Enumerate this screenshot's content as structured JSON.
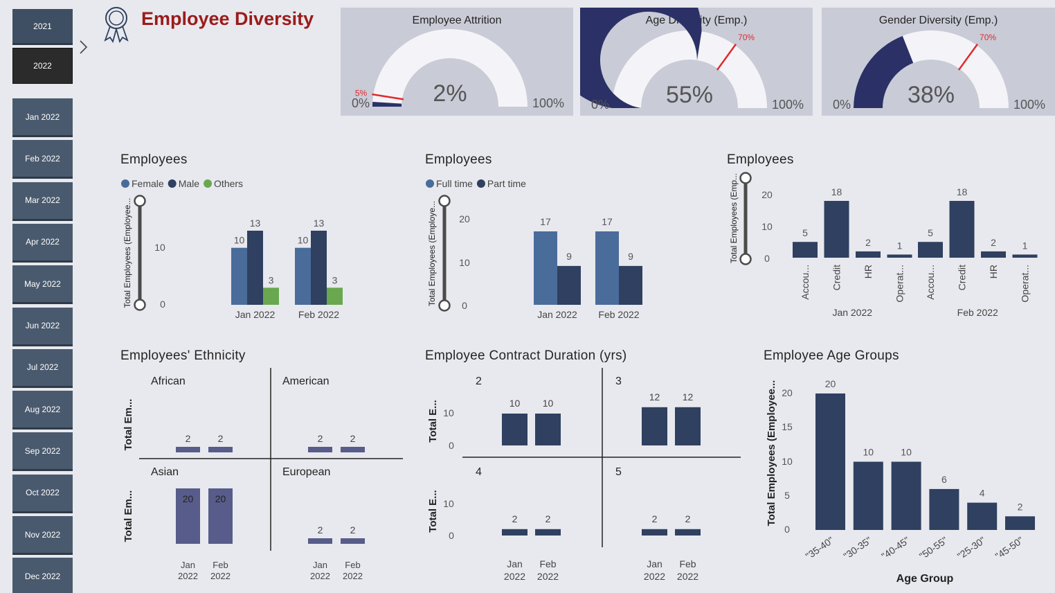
{
  "colors": {
    "navy": "#2f4060",
    "blue": "#4a6c9b",
    "green": "#6aa84f",
    "purple": "#575c8a",
    "gauge_fill": "#2b3166",
    "gauge_track": "#f4f4f8",
    "target": "#e02a2a",
    "title_red": "#9b1b1b"
  },
  "page": {
    "title": "Employee Diversity",
    "icon": "award-ribbon-icon"
  },
  "slicer": {
    "years": [
      "2021",
      "2022"
    ],
    "selected_year": "2022",
    "months": [
      "Jan 2022",
      "Feb 2022",
      "Mar 2022",
      "Apr 2022",
      "May 2022",
      "Jun 2022",
      "Jul 2022",
      "Aug 2022",
      "Sep 2022",
      "Oct 2022",
      "Nov 2022",
      "Dec 2022"
    ],
    "expand_icon": "chevron-right-icon"
  },
  "kpis": [
    {
      "title": "Employee Attrition",
      "value_label": "2%",
      "value": 0.02,
      "min_label": "0%",
      "max_label": "100%",
      "target": 0.05,
      "target_label": "5%"
    },
    {
      "title": "Age Diversity (Emp.)",
      "value_label": "55%",
      "value": 0.55,
      "min_label": "0%",
      "max_label": "100%",
      "target": 0.7,
      "target_label": "70%"
    },
    {
      "title": "Gender Diversity (Emp.)",
      "value_label": "38%",
      "value": 0.38,
      "min_label": "0%",
      "max_label": "100%",
      "target": 0.7,
      "target_label": "70%"
    }
  ],
  "chart_data": [
    {
      "id": "gender",
      "type": "bar",
      "title": "Employees",
      "ylabel": "Total Employees (Employee...",
      "categories": [
        "Jan 2022",
        "Feb 2022"
      ],
      "series": [
        {
          "name": "Female",
          "values": [
            10,
            10
          ]
        },
        {
          "name": "Male",
          "values": [
            13,
            13
          ]
        },
        {
          "name": "Others",
          "values": [
            3,
            3
          ]
        }
      ],
      "yticks": [
        "10",
        "0"
      ],
      "ylim": [
        0,
        13
      ]
    },
    {
      "id": "employment",
      "type": "bar",
      "title": "Employees",
      "ylabel": "Total Employees (Employe...",
      "categories": [
        "Jan 2022",
        "Feb 2022"
      ],
      "series": [
        {
          "name": "Full time",
          "values": [
            17,
            17
          ]
        },
        {
          "name": "Part time",
          "values": [
            9,
            9
          ]
        }
      ],
      "yticks": [
        "20",
        "10",
        "0"
      ],
      "ylim": [
        0,
        20
      ]
    },
    {
      "id": "department",
      "type": "bar",
      "title": "Employees",
      "ylabel": "Total Employees (Emp...",
      "groups": [
        "Jan 2022",
        "Feb 2022"
      ],
      "categories": [
        "Accou...",
        "Credit",
        "HR",
        "Operat..."
      ],
      "values": [
        [
          5,
          18,
          2,
          1
        ],
        [
          5,
          18,
          2,
          1
        ]
      ],
      "yticks": [
        "20",
        "10",
        "0"
      ],
      "ylim": [
        0,
        20
      ]
    },
    {
      "id": "ethnicity",
      "type": "bar",
      "title": "Employees' Ethnicity",
      "ylabel": "Total Em...",
      "panels": [
        {
          "name": "African",
          "values": [
            2,
            2
          ]
        },
        {
          "name": "American",
          "values": [
            2,
            2
          ]
        },
        {
          "name": "Asian",
          "values": [
            20,
            20
          ]
        },
        {
          "name": "European",
          "values": [
            2,
            2
          ]
        }
      ],
      "categories": [
        [
          "Jan",
          "2022"
        ],
        [
          "Feb",
          "2022"
        ]
      ],
      "ylim": [
        0,
        20
      ]
    },
    {
      "id": "contract",
      "type": "bar",
      "title": "Employee Contract Duration (yrs)",
      "ylabel": "Total E...",
      "panels": [
        {
          "name": "2",
          "values": [
            10,
            10
          ]
        },
        {
          "name": "3",
          "values": [
            12,
            12
          ]
        },
        {
          "name": "4",
          "values": [
            2,
            2
          ]
        },
        {
          "name": "5",
          "values": [
            2,
            2
          ]
        }
      ],
      "yticks": [
        "10",
        "0"
      ],
      "categories": [
        [
          "Jan",
          "2022"
        ],
        [
          "Feb",
          "2022"
        ]
      ],
      "ylim": [
        0,
        12
      ]
    },
    {
      "id": "age",
      "type": "bar",
      "title": "Employee Age Groups",
      "xlabel": "Age Group",
      "ylabel": "Total Employees (Employee...",
      "categories": [
        "\"35-40\"",
        "\"30-35\"",
        "\"40-45\"",
        "\"50-55\"",
        "\"25-30\"",
        "\"45-50\""
      ],
      "values": [
        20,
        10,
        10,
        6,
        4,
        2
      ],
      "yticks": [
        "20",
        "15",
        "10",
        "5",
        "0"
      ],
      "ylim": [
        0,
        20
      ]
    }
  ]
}
